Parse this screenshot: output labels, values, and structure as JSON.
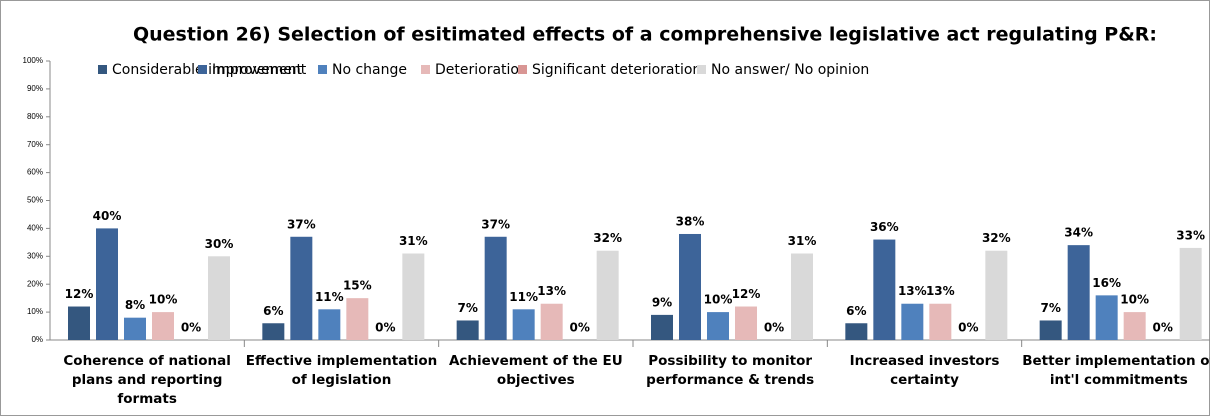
{
  "chart_data": {
    "type": "bar",
    "title": "Question 26) Selection of esitimated effects of a comprehensive legislative act regulating P&R:",
    "categories": [
      "Coherence of national\nplans and reporting\nformats",
      "Effective implementation\nof legislation",
      "Achievement of the EU\nobjectives",
      "Possibility to monitor\nperformance & trends",
      "Increased investors\ncertainty",
      "Better implementation of\nint'l commitments"
    ],
    "series": [
      {
        "name": "Considerable improvement",
        "color": "#34577f",
        "values": [
          12,
          6,
          7,
          9,
          6,
          7
        ],
        "value_labels": [
          "12%",
          "6%",
          "7%",
          "9%",
          "6%",
          "7%"
        ]
      },
      {
        "name": "Improvement",
        "color": "#3d6499",
        "values": [
          40,
          37,
          37,
          38,
          36,
          34
        ],
        "value_labels": [
          "40%",
          "37%",
          "37%",
          "38%",
          "36%",
          "34%"
        ]
      },
      {
        "name": "No change",
        "color": "#4f81bd",
        "values": [
          8,
          11,
          11,
          10,
          13,
          16
        ],
        "value_labels": [
          "8%",
          "11%",
          "11%",
          "10%",
          "13%",
          "16%"
        ]
      },
      {
        "name": "Deterioration",
        "color": "#e6b9b8",
        "values": [
          10,
          15,
          13,
          12,
          13,
          10
        ],
        "value_labels": [
          "10%",
          "15%",
          "13%",
          "12%",
          "13%",
          "10%"
        ]
      },
      {
        "name": "Significant deterioration",
        "color": "#d99694",
        "values": [
          0,
          0,
          0,
          0,
          0,
          0
        ],
        "value_labels": [
          "0%",
          "0%",
          "0%",
          "0%",
          "0%",
          "0%"
        ]
      },
      {
        "name": "No answer/ No opinion",
        "color": "#d9d9d9",
        "values": [
          30,
          31,
          32,
          31,
          32,
          33
        ],
        "value_labels": [
          "30%",
          "31%",
          "32%",
          "31%",
          "32%",
          "33%"
        ]
      }
    ],
    "ylim": [
      0,
      100
    ],
    "yticks": [
      {
        "value": 0,
        "label": "0%"
      },
      {
        "value": 10,
        "label": "10%"
      },
      {
        "value": 20,
        "label": "20%"
      },
      {
        "value": 30,
        "label": "30%"
      },
      {
        "value": 40,
        "label": "40%"
      },
      {
        "value": 50,
        "label": "50%"
      },
      {
        "value": 60,
        "label": "60%"
      },
      {
        "value": 70,
        "label": "70%"
      },
      {
        "value": 80,
        "label": "80%"
      },
      {
        "value": 90,
        "label": "90%"
      },
      {
        "value": 100,
        "label": "100%"
      }
    ],
    "grid": false,
    "legend": "top"
  }
}
